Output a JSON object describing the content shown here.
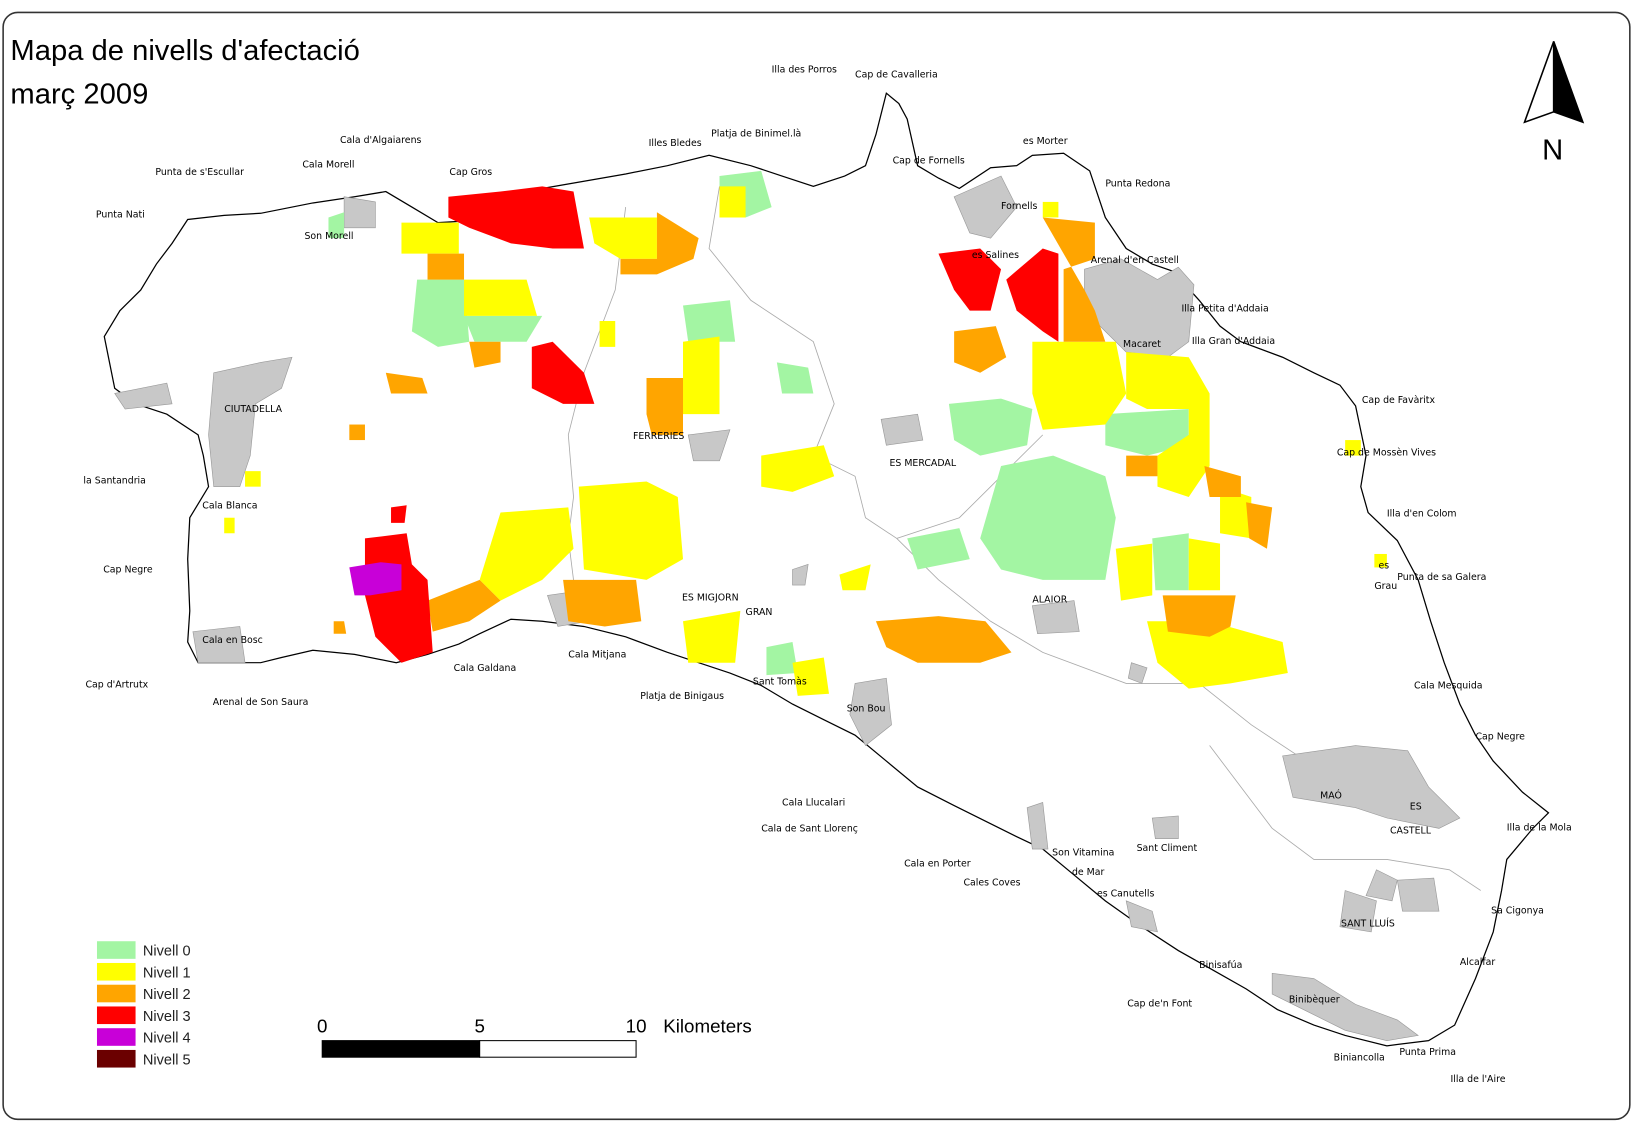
{
  "title": {
    "line1": "Mapa de nivells d'afectació",
    "line2": "març 2009"
  },
  "north": "N",
  "scale_bar": {
    "ticks": [
      "0",
      "5",
      "10"
    ],
    "unit": "Kilometers"
  },
  "legend": [
    {
      "label": "Nivell 0",
      "color": "#a3f5a3"
    },
    {
      "label": "Nivell 1",
      "color": "#ffff00"
    },
    {
      "label": "Nivell 2",
      "color": "#ffa500"
    },
    {
      "label": "Nivell 3",
      "color": "#ff0000"
    },
    {
      "label": "Nivell 4",
      "color": "#c800d8"
    },
    {
      "label": "Nivell 5",
      "color": "#6b0000"
    }
  ],
  "places": [
    "Illa des Porros",
    "Cap de Cavalleria",
    "Cala d'Algaiarens",
    "Platja de Binimel.là",
    "Illes Bledes",
    "es Morter",
    "Punta de s'Escullar",
    "Cala Morell",
    "Cap Gros",
    "Cap de Fornells",
    "Punta Redona",
    "Punta Nati",
    "Son Morell",
    "Fornells",
    "es Salines",
    "Arenal d'en Castell",
    "Illa Petita d'Addaia",
    "Macaret",
    "Illa Gran d'Addaia",
    "CIUTADELLA",
    "Cap de Favàritx",
    "FERRERIES",
    "ES MERCADAL",
    "Cap de Mossèn Vives",
    "la Santandria",
    "Cala Blanca",
    "Illa d'en Colom",
    "Cap Negre",
    "es",
    "Grau",
    "Punta de sa Galera",
    "ES MIGJORN",
    "GRAN",
    "ALAIOR",
    "Cala en Bosc",
    "Cala Mitjana",
    "Cala Galdana",
    "Cap d'Artrutx",
    "Sant Tomàs",
    "Cala Mesquida",
    "Platja de Binigaus",
    "Arenal de Son Saura",
    "Son Bou",
    "Cap Negre",
    "MAÓ",
    "Cala Llucalari",
    "ES",
    "CASTELL",
    "Cala de Sant Llorenç",
    "Illa de la Mola",
    "Son Vitamina",
    "Sant Climent",
    "Cala en Porter",
    "de Mar",
    "Cales Coves",
    "es Canutells",
    "Sa Cigonya",
    "SANT LLUÍS",
    "Binisafúa",
    "Alcalfar",
    "Cap de'n Font",
    "Binibèquer",
    "Biniancolla",
    "Punta Prima",
    "Illa de l'Aire"
  ]
}
